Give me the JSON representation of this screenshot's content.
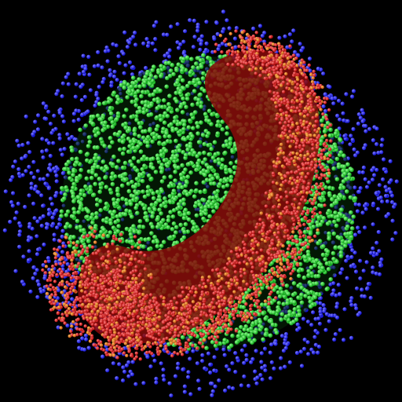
{
  "scene": {
    "background": "#000000",
    "layers": [
      {
        "name": "outer-shell",
        "color": "#1010e6"
      },
      {
        "name": "inner-sphere",
        "color": "#14d21e"
      },
      {
        "name": "curved-band",
        "color": "#e61414"
      }
    ]
  }
}
